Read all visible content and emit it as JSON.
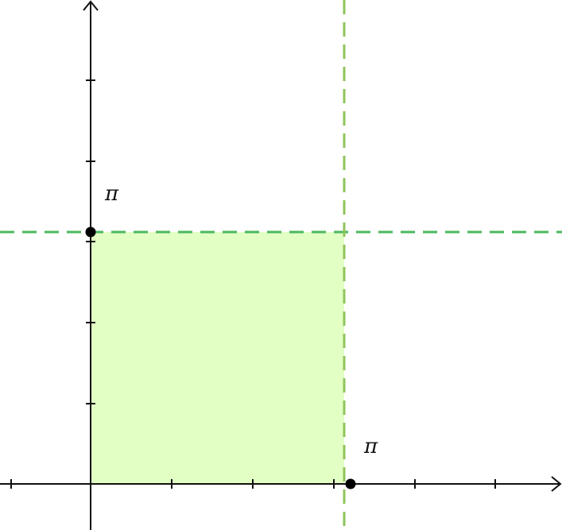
{
  "labels": {
    "y_point": "π",
    "x_point": "π"
  },
  "colors": {
    "axis": "#111111",
    "region_fill": "#e2ffc4",
    "horizontal_dash": "#4bb85e",
    "vertical_dash": "#8fc45a",
    "point": "#000000"
  },
  "icons": {
    "x_axis_arrow": "chevron-right-icon",
    "y_axis_arrow": "chevron-up-icon"
  }
}
